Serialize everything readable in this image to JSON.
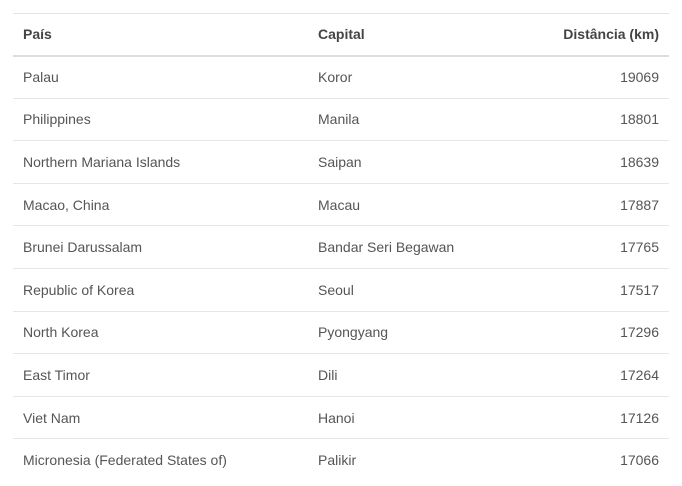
{
  "table": {
    "headers": {
      "country": "País",
      "capital": "Capital",
      "distance": "Distância (km)"
    },
    "rows": [
      {
        "country": "Palau",
        "capital": "Koror",
        "distance": "19069"
      },
      {
        "country": "Philippines",
        "capital": "Manila",
        "distance": "18801"
      },
      {
        "country": "Northern Mariana Islands",
        "capital": "Saipan",
        "distance": "18639"
      },
      {
        "country": "Macao, China",
        "capital": "Macau",
        "distance": "17887"
      },
      {
        "country": "Brunei Darussalam",
        "capital": "Bandar Seri Begawan",
        "distance": "17765"
      },
      {
        "country": "Republic of Korea",
        "capital": "Seoul",
        "distance": "17517"
      },
      {
        "country": "North Korea",
        "capital": "Pyongyang",
        "distance": "17296"
      },
      {
        "country": "East Timor",
        "capital": "Dili",
        "distance": "17264"
      },
      {
        "country": "Viet Nam",
        "capital": "Hanoi",
        "distance": "17126"
      },
      {
        "country": "Micronesia (Federated States of)",
        "capital": "Palikir",
        "distance": "17066"
      }
    ]
  }
}
